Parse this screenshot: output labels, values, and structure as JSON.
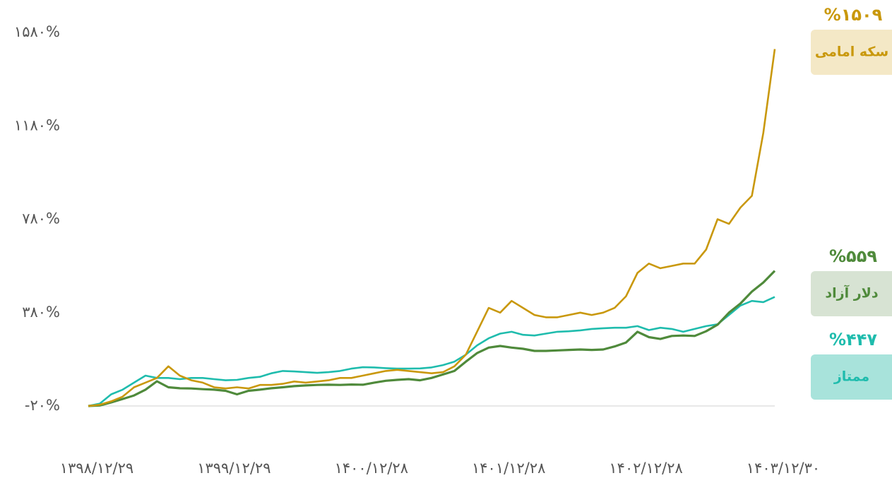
{
  "chart_data": {
    "type": "line",
    "xlim": [
      0,
      60
    ],
    "xticks": [
      {
        "value": 0,
        "label": "۱۳۹۸/۱۲/۲۹"
      },
      {
        "value": 12,
        "label": "۱۳۹۹/۱۲/۲۹"
      },
      {
        "value": 24,
        "label": "۱۴۰۰/۱۲/۲۸"
      },
      {
        "value": 36,
        "label": "۱۴۰۱/۱۲/۲۸"
      },
      {
        "value": 48,
        "label": "۱۴۰۲/۱۲/۲۸"
      },
      {
        "value": 60,
        "label": "۱۴۰۳/۱۲/۳۰"
      }
    ],
    "ylim": [
      -20,
      1580
    ],
    "yticks": [
      {
        "value": -20,
        "label": "-۲۰%"
      },
      {
        "value": 380,
        "label": "۳۸۰%"
      },
      {
        "value": 780,
        "label": "۷۸۰%"
      },
      {
        "value": 1180,
        "label": "۱۱۸۰%"
      },
      {
        "value": 1580,
        "label": "۱۵۸۰%"
      }
    ],
    "grid": false,
    "series": [
      {
        "name": "سکه امامی",
        "color": "#c9980c",
        "label_bg": "#f4e8c6",
        "end_value_label": "%۱۵۰۹",
        "values": [
          -20,
          -15,
          0,
          20,
          60,
          80,
          100,
          150,
          110,
          90,
          80,
          60,
          55,
          60,
          55,
          70,
          70,
          75,
          85,
          80,
          85,
          90,
          100,
          100,
          110,
          120,
          130,
          135,
          130,
          125,
          120,
          125,
          150,
          200,
          300,
          400,
          380,
          430,
          400,
          370,
          360,
          360,
          370,
          380,
          370,
          380,
          400,
          450,
          550,
          590,
          570,
          580,
          590,
          590,
          650,
          780,
          760,
          830,
          880,
          1150,
          1509
        ]
      },
      {
        "name": "دلار آزاد",
        "color": "#4f8a3b",
        "label_bg": "#d7e3d3",
        "end_value_label": "%۵۵۹",
        "values": [
          -20,
          -18,
          -5,
          10,
          25,
          50,
          86,
          60,
          56,
          55,
          52,
          50,
          45,
          30,
          45,
          50,
          56,
          60,
          65,
          68,
          70,
          71,
          70,
          72,
          71,
          80,
          88,
          92,
          95,
          90,
          100,
          115,
          130,
          170,
          207,
          230,
          237,
          230,
          225,
          216,
          216,
          218,
          220,
          222,
          220,
          222,
          235,
          252,
          298,
          275,
          267,
          280,
          282,
          280,
          300,
          328,
          380,
          419,
          470,
          509,
          559
        ]
      },
      {
        "name": "ممتاز",
        "color": "#1fbcad",
        "label_bg": "#a8e3db",
        "end_value_label": "%۴۴۷",
        "values": [
          -20,
          -10,
          30,
          50,
          80,
          110,
          100,
          100,
          95,
          100,
          100,
          95,
          90,
          92,
          100,
          105,
          120,
          130,
          128,
          125,
          122,
          125,
          130,
          140,
          146,
          145,
          142,
          140,
          140,
          141,
          145,
          155,
          170,
          200,
          240,
          270,
          290,
          298,
          285,
          282,
          290,
          298,
          300,
          304,
          310,
          313,
          315,
          315,
          322,
          305,
          315,
          310,
          298,
          310,
          322,
          330,
          370,
          410,
          430,
          425,
          447
        ]
      }
    ]
  }
}
